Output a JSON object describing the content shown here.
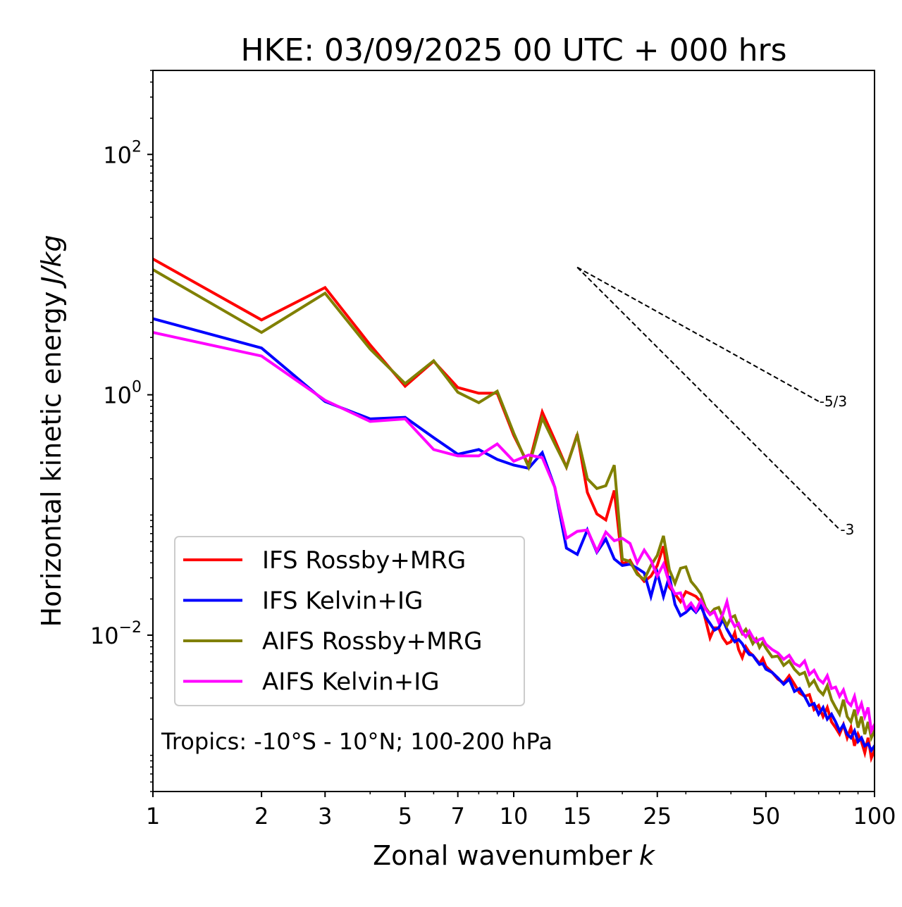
{
  "chart_data": {
    "type": "line",
    "title": "HKE: 03/09/2025 00 UTC + 000 hrs",
    "xlabel": "Zonal wavenumber",
    "xlabel_italic": "k",
    "ylabel": "Horizontal kinetic energy",
    "ylabel_italic": "J/kg",
    "xscale": "log",
    "yscale": "log",
    "xlim": [
      1,
      100
    ],
    "ylim": [
      0.0005,
      500
    ],
    "grid": false,
    "xticks": [
      {
        "value": 1,
        "label": "1"
      },
      {
        "value": 2,
        "label": "2"
      },
      {
        "value": 3,
        "label": "3"
      },
      {
        "value": 5,
        "label": "5"
      },
      {
        "value": 7,
        "label": "7"
      },
      {
        "value": 10,
        "label": "10"
      },
      {
        "value": 15,
        "label": "15"
      },
      {
        "value": 25,
        "label": "25"
      },
      {
        "value": 50,
        "label": "50"
      },
      {
        "value": 100,
        "label": "100"
      }
    ],
    "yticks": [
      {
        "value": 100,
        "base": "10",
        "exp": "2"
      },
      {
        "value": 1,
        "base": "10",
        "exp": "0"
      },
      {
        "value": 0.01,
        "base": "10",
        "exp": "−2"
      }
    ],
    "legend_position": "lower-left",
    "annotation": "Tropics: -10°S - 10°N; 100-200 hPa",
    "reference_slopes": [
      {
        "label": "-5/3",
        "slope": -1.6667,
        "k_start": 15,
        "k_end": 70,
        "E_start": 11.5
      },
      {
        "label": "-3",
        "slope": -3,
        "k_start": 15,
        "k_end": 80,
        "E_start": 11.5
      }
    ],
    "series": [
      {
        "name": "IFS Rossby+MRG",
        "color": "#ff0000",
        "x": [
          1,
          2,
          3,
          4,
          5,
          6,
          7,
          8,
          9,
          10,
          11,
          12,
          13,
          14,
          15,
          16,
          17,
          18,
          19,
          20,
          21,
          22,
          23,
          24,
          25,
          26,
          27,
          28,
          29,
          30,
          31,
          32,
          33,
          34,
          35,
          36,
          37,
          38,
          39,
          40,
          41,
          42,
          43,
          44,
          45,
          46,
          47,
          48,
          49,
          50,
          52,
          54,
          56,
          58,
          60,
          62,
          64,
          66,
          68,
          70,
          72,
          74,
          76,
          78,
          80,
          82,
          84,
          86,
          88,
          90,
          92,
          94,
          96,
          98,
          100
        ],
        "values": [
          13.5,
          4.2,
          7.8,
          2.6,
          1.18,
          1.9,
          1.15,
          1.03,
          1.03,
          0.46,
          0.26,
          0.72,
          0.42,
          0.25,
          0.47,
          0.154,
          0.102,
          0.091,
          0.16,
          0.039,
          0.042,
          0.033,
          0.028,
          0.031,
          0.038,
          0.055,
          0.025,
          0.022,
          0.019,
          0.023,
          0.022,
          0.021,
          0.019,
          0.0135,
          0.0095,
          0.0115,
          0.0115,
          0.0095,
          0.0085,
          0.0088,
          0.0105,
          0.0076,
          0.0065,
          0.008,
          0.0072,
          0.0068,
          0.0063,
          0.0058,
          0.0064,
          0.0055,
          0.0049,
          0.0043,
          0.004,
          0.0046,
          0.0039,
          0.0033,
          0.0031,
          0.0032,
          0.0024,
          0.0026,
          0.0021,
          0.0025,
          0.0019,
          0.0017,
          0.0015,
          0.0018,
          0.0014,
          0.0017,
          0.0012,
          0.0015,
          0.0013,
          0.00105,
          0.0014,
          0.00095,
          0.0011
        ]
      },
      {
        "name": "IFS Kelvin+IG",
        "color": "#0000ff",
        "x": [
          1,
          2,
          3,
          4,
          5,
          6,
          7,
          8,
          9,
          10,
          11,
          12,
          13,
          14,
          15,
          16,
          17,
          18,
          19,
          20,
          21,
          22,
          23,
          24,
          25,
          26,
          27,
          28,
          29,
          30,
          31,
          32,
          33,
          34,
          35,
          36,
          37,
          38,
          39,
          40,
          41,
          42,
          43,
          44,
          45,
          46,
          47,
          48,
          49,
          50,
          52,
          54,
          56,
          58,
          60,
          62,
          64,
          66,
          68,
          70,
          72,
          74,
          76,
          78,
          80,
          82,
          84,
          86,
          88,
          90,
          92,
          94,
          96,
          98,
          100
        ],
        "values": [
          4.3,
          2.45,
          0.88,
          0.63,
          0.65,
          0.44,
          0.32,
          0.35,
          0.29,
          0.26,
          0.245,
          0.33,
          0.17,
          0.053,
          0.047,
          0.075,
          0.049,
          0.063,
          0.043,
          0.038,
          0.039,
          0.036,
          0.033,
          0.021,
          0.033,
          0.021,
          0.031,
          0.018,
          0.0145,
          0.0155,
          0.017,
          0.0155,
          0.0175,
          0.0142,
          0.0125,
          0.011,
          0.0115,
          0.0135,
          0.0112,
          0.0098,
          0.0088,
          0.0092,
          0.0085,
          0.0075,
          0.0069,
          0.0068,
          0.0062,
          0.0057,
          0.0058,
          0.0052,
          0.0049,
          0.0044,
          0.0039,
          0.0043,
          0.0034,
          0.0036,
          0.0031,
          0.0026,
          0.0027,
          0.0022,
          0.0025,
          0.002,
          0.0022,
          0.0019,
          0.0016,
          0.0018,
          0.0015,
          0.0014,
          0.0016,
          0.0013,
          0.0014,
          0.0012,
          0.00125,
          0.0011,
          0.0012
        ]
      },
      {
        "name": "AIFS Rossby+MRG",
        "color": "#808000",
        "x": [
          1,
          2,
          3,
          4,
          5,
          6,
          7,
          8,
          9,
          10,
          11,
          12,
          13,
          14,
          15,
          16,
          17,
          18,
          19,
          20,
          21,
          22,
          23,
          24,
          25,
          26,
          27,
          28,
          29,
          30,
          31,
          32,
          33,
          34,
          35,
          36,
          37,
          38,
          39,
          40,
          41,
          42,
          43,
          44,
          45,
          46,
          47,
          48,
          49,
          50,
          52,
          54,
          56,
          58,
          60,
          62,
          64,
          66,
          68,
          70,
          72,
          74,
          76,
          78,
          80,
          82,
          84,
          86,
          88,
          90,
          92,
          94,
          96,
          98,
          100
        ],
        "values": [
          11.0,
          3.3,
          7.0,
          2.4,
          1.24,
          1.92,
          1.05,
          0.86,
          1.07,
          0.48,
          0.25,
          0.64,
          0.39,
          0.25,
          0.46,
          0.2,
          0.166,
          0.175,
          0.26,
          0.043,
          0.041,
          0.032,
          0.029,
          0.038,
          0.046,
          0.067,
          0.035,
          0.027,
          0.036,
          0.037,
          0.028,
          0.025,
          0.022,
          0.017,
          0.015,
          0.0165,
          0.017,
          0.014,
          0.012,
          0.014,
          0.0145,
          0.0118,
          0.0103,
          0.0112,
          0.0098,
          0.0085,
          0.0093,
          0.0079,
          0.0087,
          0.0078,
          0.0066,
          0.0067,
          0.0056,
          0.0061,
          0.0052,
          0.0047,
          0.0049,
          0.0038,
          0.0042,
          0.0035,
          0.0032,
          0.0038,
          0.0029,
          0.0025,
          0.0022,
          0.0029,
          0.0021,
          0.0019,
          0.0024,
          0.0017,
          0.0021,
          0.0015,
          0.0019,
          0.0014,
          0.0016
        ]
      },
      {
        "name": "AIFS Kelvin+IG",
        "color": "#ff00ff",
        "x": [
          1,
          2,
          3,
          4,
          5,
          6,
          7,
          8,
          9,
          10,
          11,
          12,
          13,
          14,
          15,
          16,
          17,
          18,
          19,
          20,
          21,
          22,
          23,
          24,
          25,
          26,
          27,
          28,
          29,
          30,
          31,
          32,
          33,
          34,
          35,
          36,
          37,
          38,
          39,
          40,
          41,
          42,
          43,
          44,
          45,
          46,
          47,
          48,
          49,
          50,
          52,
          54,
          56,
          58,
          60,
          62,
          64,
          66,
          68,
          70,
          72,
          74,
          76,
          78,
          80,
          82,
          84,
          86,
          88,
          90,
          92,
          94,
          96,
          98,
          100
        ],
        "values": [
          3.3,
          2.1,
          0.9,
          0.6,
          0.63,
          0.35,
          0.31,
          0.31,
          0.39,
          0.28,
          0.315,
          0.3,
          0.17,
          0.064,
          0.073,
          0.075,
          0.05,
          0.072,
          0.061,
          0.064,
          0.058,
          0.04,
          0.051,
          0.042,
          0.031,
          0.039,
          0.027,
          0.022,
          0.0225,
          0.0165,
          0.0185,
          0.016,
          0.0195,
          0.0165,
          0.0148,
          0.0157,
          0.0128,
          0.015,
          0.019,
          0.0135,
          0.0118,
          0.0125,
          0.0105,
          0.0097,
          0.0108,
          0.0096,
          0.0088,
          0.0092,
          0.0094,
          0.0084,
          0.0076,
          0.0071,
          0.0063,
          0.0068,
          0.0058,
          0.0055,
          0.0061,
          0.0047,
          0.0051,
          0.0043,
          0.004,
          0.0046,
          0.0036,
          0.0037,
          0.0031,
          0.0035,
          0.0028,
          0.0026,
          0.0031,
          0.0023,
          0.0027,
          0.0021,
          0.0025,
          0.0016,
          0.0018
        ]
      }
    ]
  }
}
